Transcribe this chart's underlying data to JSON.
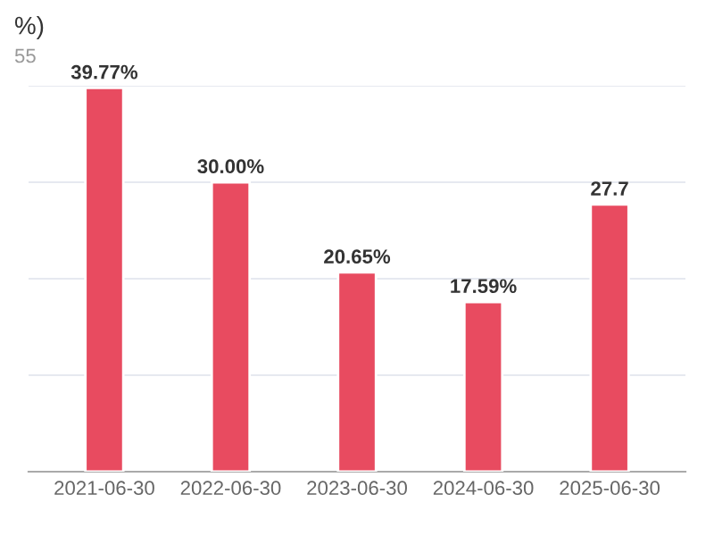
{
  "chart_data": {
    "type": "bar",
    "title": "%)",
    "subtitle": "55",
    "categories": [
      "2021-06-30",
      "2022-06-30",
      "2023-06-30",
      "2024-06-30",
      "2025-06-30"
    ],
    "values": [
      39.77,
      30.0,
      20.65,
      17.59,
      27.7
    ],
    "value_labels": [
      "39.77%",
      "30.00%",
      "20.65%",
      "17.59%",
      "27.7"
    ],
    "color": "#e84b60",
    "ylim": [
      0,
      40
    ],
    "yticks": [
      {
        "value": 0,
        "label": null
      },
      {
        "value": 10,
        "label": null
      },
      {
        "value": 20,
        "label": null
      },
      {
        "value": 30,
        "label": null
      },
      {
        "value": 40,
        "label": null
      }
    ],
    "grid": "y",
    "tick_labels": "x"
  }
}
